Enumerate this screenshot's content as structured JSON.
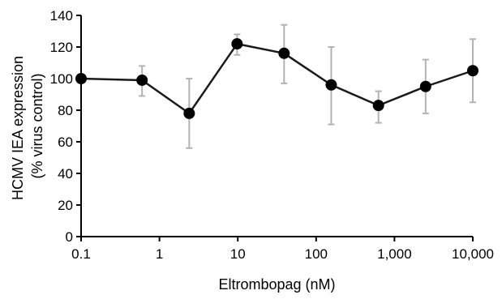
{
  "chart_data": {
    "type": "line",
    "title": "",
    "xlabel": "Eltrombopag (nM)",
    "ylabel_line1": "HCMV IEA expression",
    "ylabel_line2": "(% virus control)",
    "x_scale": "log",
    "xlim": [
      0.1,
      10000
    ],
    "ylim": [
      0,
      140
    ],
    "x_ticks": [
      0.1,
      1,
      10,
      100,
      1000,
      10000
    ],
    "x_tick_labels": [
      "0.1",
      "1",
      "10",
      "100",
      "1,000",
      "10,000"
    ],
    "y_ticks": [
      0,
      20,
      40,
      60,
      80,
      100,
      120,
      140
    ],
    "y_tick_labels": [
      "0",
      "20",
      "40",
      "60",
      "80",
      "100",
      "120",
      "140"
    ],
    "grid": false,
    "series": [
      {
        "x": [
          0.1,
          0.6,
          2.4,
          9.8,
          39,
          156,
          625,
          2500,
          10000
        ],
        "y": [
          100,
          99,
          78,
          122,
          116,
          96,
          83,
          95,
          105
        ],
        "error_low": [
          100,
          89,
          56,
          115,
          97,
          71,
          72,
          78,
          85
        ],
        "error_high": [
          100,
          108,
          100,
          128,
          134,
          120,
          92,
          112,
          125
        ]
      }
    ],
    "colors": {
      "line": "#1a1a1a",
      "marker": "#000000",
      "error_bar": "#b3b3b3",
      "axis": "#000000"
    }
  }
}
